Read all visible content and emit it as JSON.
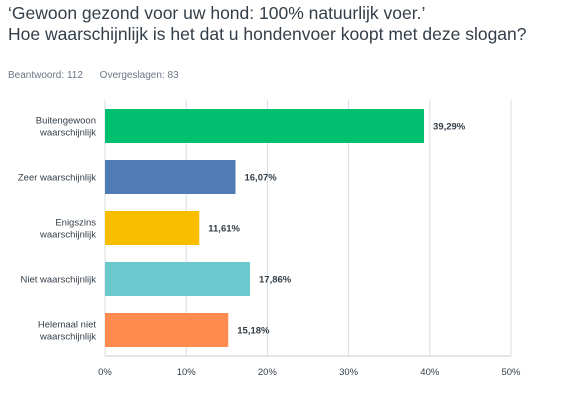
{
  "question": {
    "line1": "‘Gewoon gezond voor uw hond: 100% natuurlijk voer.’",
    "line2": "Hoe waarschijnlijk is het dat u hondenvoer koopt met deze slogan?"
  },
  "stats": {
    "answered_label": "Beantwoord:",
    "answered_value": "112",
    "skipped_label": "Overgeslagen:",
    "skipped_value": "83"
  },
  "chart_data": {
    "type": "bar",
    "orientation": "horizontal",
    "categories": [
      [
        "Buitengewoon",
        "waarschijnlijk"
      ],
      [
        "Zeer waarschijnlijk"
      ],
      [
        "Enigszins",
        "waarschijnlijk"
      ],
      [
        "Niet waarschijnlijk"
      ],
      [
        "Helemaal niet",
        "waarschijnlijk"
      ]
    ],
    "values": [
      39.29,
      16.07,
      11.61,
      17.86,
      15.18
    ],
    "value_labels": [
      "39,29%",
      "16,07%",
      "11,61%",
      "17,86%",
      "15,18%"
    ],
    "colors": [
      "#00bf6f",
      "#507cb6",
      "#f9be00",
      "#6bc8cd",
      "#ff8b4f"
    ],
    "xlim": [
      0,
      50
    ],
    "xticks": [
      0,
      10,
      20,
      30,
      40,
      50
    ],
    "xtick_labels": [
      "0%",
      "10%",
      "20%",
      "30%",
      "40%",
      "50%"
    ],
    "grid": true,
    "gridline_color": "#d9dde1"
  }
}
